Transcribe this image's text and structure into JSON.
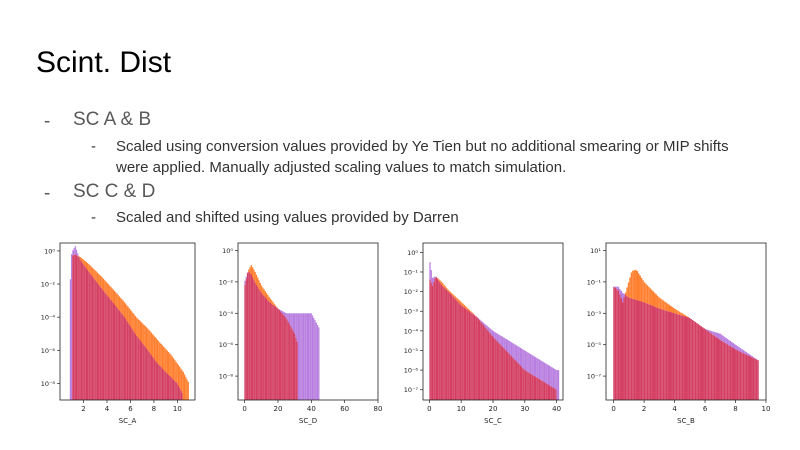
{
  "slide": {
    "title": "Scint. Dist",
    "bullets": [
      {
        "dash": "-",
        "text": "SC A & B"
      },
      {
        "dash": "-",
        "text": "Scaled using conversion values provided by Ye Tien but no additional smearing or MIP shifts"
      },
      {
        "text": "were applied. Manually adjusted scaling values to match simulation."
      },
      {
        "dash": "-",
        "text": "SC C & D"
      },
      {
        "dash": "-",
        "text": "Scaled and shifted using values provided by Darren"
      }
    ]
  },
  "colors": {
    "sim": "#b97fe0",
    "data": "#ff7f2e",
    "overlap": "#d43f63"
  },
  "chart_data": [
    {
      "type": "histogram",
      "xlabel": "SC_A",
      "yscale": "log",
      "xlim": [
        0,
        11.5
      ],
      "ylim": [
        1e-09,
        3
      ],
      "xticks": [
        2,
        4,
        6,
        8,
        10
      ],
      "xtick_labels": [
        "2",
        "4",
        "6",
        "8",
        "10"
      ],
      "yticks": [
        1,
        0.01,
        0.0001,
        1e-06,
        1e-08
      ],
      "ytick_labels": [
        "10⁰",
        "10⁻²",
        "10⁻⁴",
        "10⁻⁶",
        "10⁻⁸"
      ],
      "purple": {
        "range": [
          0.8,
          10.5
        ],
        "x": [
          0.8,
          1.0,
          1.3,
          1.7,
          2.5,
          3.5,
          4.5,
          5.5,
          6.5,
          7.5,
          8.2,
          9.0,
          10.0,
          10.5
        ],
        "y": [
          0.001,
          0.8,
          2.0,
          0.3,
          0.05,
          0.006,
          0.0008,
          0.0001,
          8e-06,
          1e-06,
          2e-07,
          5e-08,
          1e-08,
          2e-09
        ]
      },
      "orange": {
        "range": [
          1.0,
          11.0
        ],
        "x": [
          1.0,
          1.3,
          1.8,
          2.5,
          3.5,
          4.5,
          5.5,
          6.5,
          7.5,
          8.5,
          9.5,
          10.5,
          11.0
        ],
        "y": [
          0.5,
          0.6,
          0.4,
          0.15,
          0.03,
          0.005,
          0.0008,
          0.0001,
          2e-05,
          3e-06,
          5e-07,
          5e-08,
          1e-08
        ]
      }
    },
    {
      "type": "histogram",
      "xlabel": "SC_D",
      "yscale": "log",
      "xlim": [
        -4,
        80
      ],
      "ylim": [
        3e-10,
        3
      ],
      "xticks": [
        0,
        20,
        40,
        60,
        80
      ],
      "xtick_labels": [
        "0",
        "20",
        "40",
        "60",
        "80"
      ],
      "yticks": [
        1,
        0.01,
        0.0001,
        1e-06,
        1e-08
      ],
      "ytick_labels": [
        "10⁰",
        "10⁻²",
        "10⁻⁴",
        "10⁻⁶",
        "10⁻⁸"
      ],
      "purple": {
        "range": [
          0,
          45
        ],
        "x": [
          0,
          2,
          4,
          6,
          10,
          15,
          20,
          25,
          30,
          35,
          40,
          45
        ],
        "y": [
          0.01,
          0.05,
          0.03,
          0.01,
          0.002,
          0.0005,
          0.0002,
          0.0001,
          0.0001,
          0.0001,
          0.0001,
          1e-05
        ]
      },
      "orange": {
        "range": [
          0,
          32
        ],
        "x": [
          0,
          2,
          4,
          6,
          10,
          15,
          20,
          25,
          30,
          32
        ],
        "y": [
          0.005,
          0.05,
          0.12,
          0.05,
          0.006,
          0.001,
          0.0002,
          5e-05,
          5e-06,
          1e-06
        ]
      }
    },
    {
      "type": "histogram",
      "xlabel": "SC_C",
      "yscale": "log",
      "xlim": [
        -2,
        42
      ],
      "ylim": [
        3e-08,
        3
      ],
      "xticks": [
        0,
        10,
        20,
        30,
        40
      ],
      "xtick_labels": [
        "0",
        "10",
        "20",
        "30",
        "40"
      ],
      "yticks": [
        1,
        0.1,
        0.01,
        0.001,
        0.0001,
        1e-05,
        1e-06,
        1e-07
      ],
      "ytick_labels": [
        "10⁰",
        "10⁻¹",
        "10⁻²",
        "10⁻³",
        "10⁻⁴",
        "10⁻⁵",
        "10⁻⁶",
        "10⁻⁷"
      ],
      "purple": {
        "range": [
          0,
          41
        ],
        "x": [
          0,
          1,
          2,
          4,
          6,
          10,
          15,
          20,
          30,
          40
        ],
        "y": [
          0.5,
          0.05,
          0.06,
          0.02,
          0.01,
          0.002,
          0.0005,
          0.0001,
          1e-05,
          1e-06
        ]
      },
      "orange": {
        "range": [
          0,
          40
        ],
        "x": [
          0,
          1,
          2,
          4,
          6,
          10,
          15,
          20,
          30,
          40
        ],
        "y": [
          0.05,
          0.02,
          0.06,
          0.03,
          0.012,
          0.003,
          0.0005,
          5e-05,
          1e-06,
          1e-07
        ]
      }
    },
    {
      "type": "histogram",
      "xlabel": "SC_B",
      "yscale": "log",
      "xlim": [
        -0.5,
        10
      ],
      "ylim": [
        3e-09,
        30
      ],
      "xticks": [
        0,
        2,
        4,
        6,
        8,
        10
      ],
      "xtick_labels": [
        "0",
        "2",
        "4",
        "6",
        "8",
        "10"
      ],
      "yticks": [
        10,
        0.1,
        0.001,
        1e-05,
        1e-07
      ],
      "ytick_labels": [
        "10¹",
        "10⁻¹",
        "10⁻³",
        "10⁻⁵",
        "10⁻⁷"
      ],
      "purple": {
        "range": [
          0,
          9.5
        ],
        "x": [
          0,
          0.3,
          0.6,
          1.0,
          2.0,
          3.0,
          4.0,
          5.0,
          6.0,
          7.0,
          8.0,
          9.5
        ],
        "y": [
          0.05,
          0.05,
          0.02,
          0.01,
          0.005,
          0.002,
          0.001,
          0.0005,
          0.0001,
          5e-05,
          1e-05,
          1e-06
        ]
      },
      "orange": {
        "range": [
          0,
          9.5
        ],
        "x": [
          0,
          0.3,
          0.6,
          0.9,
          1.2,
          1.5,
          2.0,
          3.0,
          4.0,
          5.0,
          6.0,
          7.0,
          8.0,
          9.5
        ],
        "y": [
          0.05,
          0.03,
          0.005,
          0.05,
          0.5,
          0.6,
          0.1,
          0.01,
          0.002,
          0.0005,
          0.0001,
          2e-05,
          5e-06,
          1e-06
        ]
      }
    }
  ]
}
